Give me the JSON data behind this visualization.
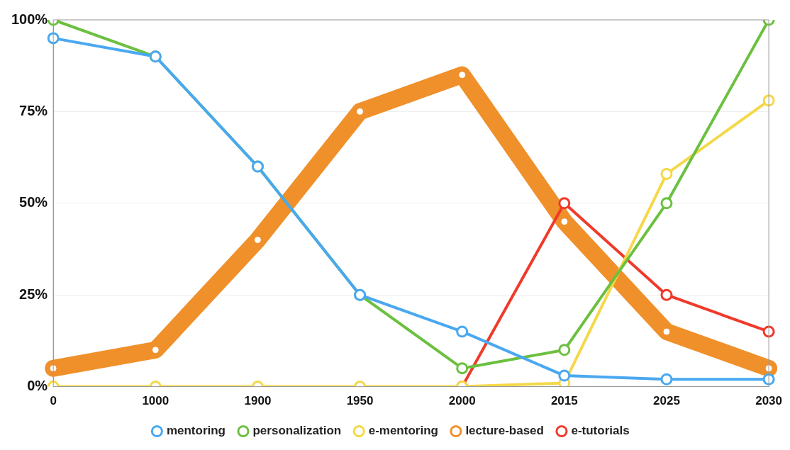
{
  "chart_data": {
    "type": "line",
    "categories": [
      "0",
      "1000",
      "1900",
      "1950",
      "2000",
      "2015",
      "2025",
      "2030"
    ],
    "ylim": [
      0,
      100
    ],
    "yticks": [
      {
        "value": 0,
        "label": "0%"
      },
      {
        "value": 25,
        "label": "25%"
      },
      {
        "value": 50,
        "label": "50%"
      },
      {
        "value": 75,
        "label": "75%"
      },
      {
        "value": 100,
        "label": "100%"
      }
    ],
    "grid": "y",
    "legend": "bottom",
    "marker": "circle",
    "line_style": "solid",
    "series": [
      {
        "name": "mentoring",
        "color": "#4aa8f0",
        "values": [
          95,
          90,
          60,
          25,
          15,
          3,
          2,
          2
        ]
      },
      {
        "name": "personalization",
        "color": "#6cc040",
        "values": [
          100,
          90,
          60,
          25,
          5,
          10,
          50,
          100
        ]
      },
      {
        "name": "e-mentoring",
        "color": "#f5d84a",
        "values": [
          0,
          0,
          0,
          0,
          0,
          1,
          58,
          78
        ]
      },
      {
        "name": "lecture-based",
        "color": "#f0902a",
        "values": [
          5,
          10,
          40,
          75,
          85,
          45,
          15,
          5
        ]
      },
      {
        "name": "e-tutorials",
        "color": "#f03a2a",
        "values": [
          null,
          null,
          null,
          null,
          0,
          50,
          25,
          15
        ]
      }
    ]
  }
}
